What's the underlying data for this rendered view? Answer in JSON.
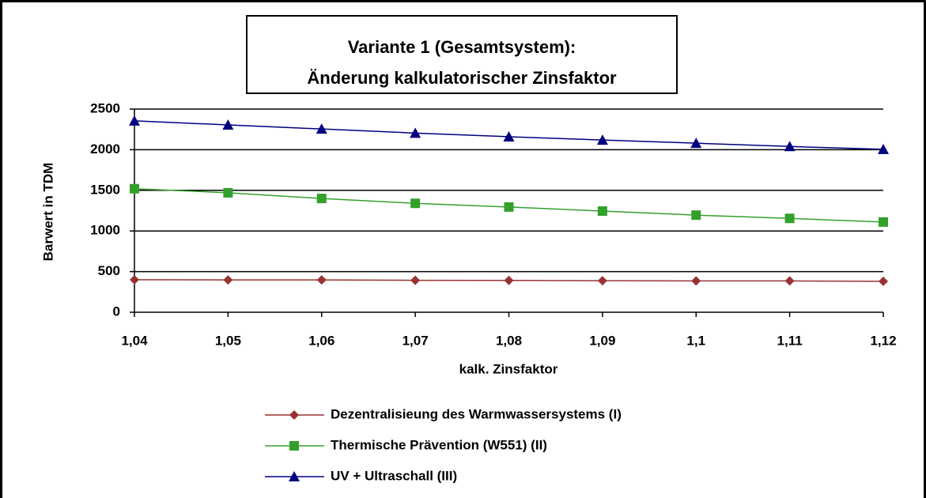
{
  "chart_data": {
    "type": "line",
    "title": [
      "Variante 1 (Gesamtsystem):",
      "Änderung kalkulatorischer Zinsfaktor"
    ],
    "x_label": "kalk. Zinsfaktor",
    "y_label": "Barwert in TDM",
    "x": [
      1.04,
      1.05,
      1.06,
      1.07,
      1.08,
      1.09,
      1.1,
      1.11,
      1.12
    ],
    "xlim": [
      1.04,
      1.12
    ],
    "xticks": [
      {
        "value": 1.04,
        "label": "1,04"
      },
      {
        "value": 1.05,
        "label": "1,05"
      },
      {
        "value": 1.06,
        "label": "1,06"
      },
      {
        "value": 1.07,
        "label": "1,07"
      },
      {
        "value": 1.08,
        "label": "1,08"
      },
      {
        "value": 1.09,
        "label": "1,09"
      },
      {
        "value": 1.1,
        "label": "1,1"
      },
      {
        "value": 1.11,
        "label": "1,11"
      },
      {
        "value": 1.12,
        "label": "1,12"
      }
    ],
    "ylim": [
      0,
      2500
    ],
    "yticks": [
      0,
      500,
      1000,
      1500,
      2000,
      2500
    ],
    "grid": true,
    "legend": "bottom",
    "series": [
      {
        "name": "Dezentralisieung des Warmwassersystems (I)",
        "color": "#993333",
        "marker": "diamond",
        "values": [
          400,
          398,
          398,
          393,
          392,
          388,
          386,
          385,
          380
        ]
      },
      {
        "name": "Thermische Prävention (W551) (II)",
        "color": "#33a02c",
        "marker": "square",
        "values": [
          1520,
          1470,
          1400,
          1340,
          1295,
          1245,
          1195,
          1155,
          1110
        ]
      },
      {
        "name": "UV + Ultraschall (III)",
        "color": "#000080",
        "marker": "triangle",
        "values": [
          2355,
          2305,
          2255,
          2205,
          2160,
          2120,
          2080,
          2040,
          2005
        ]
      }
    ]
  }
}
